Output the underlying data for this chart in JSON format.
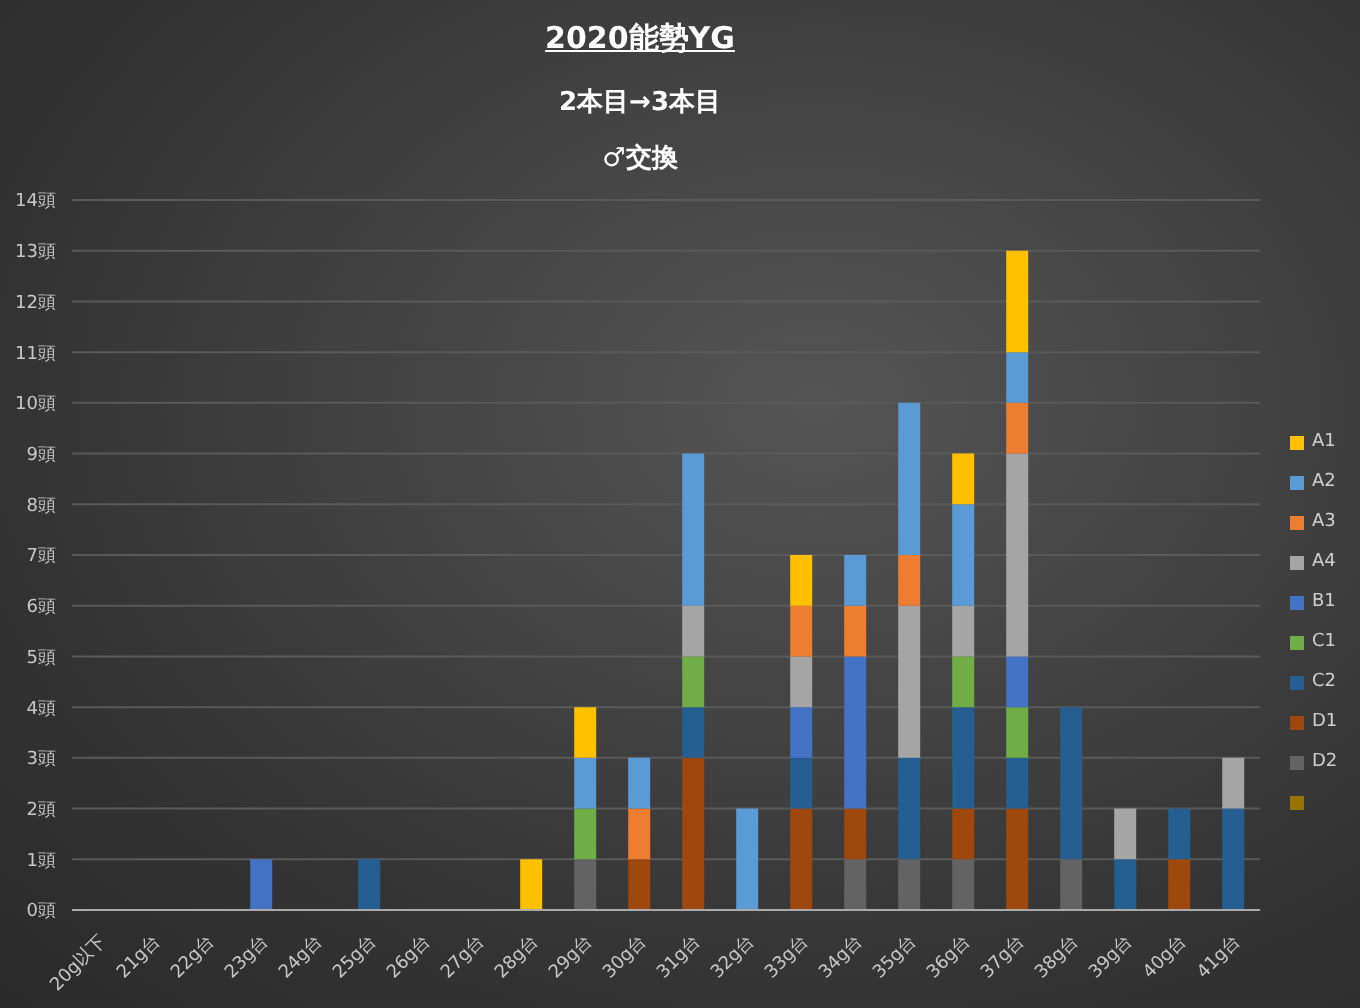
{
  "chart_data": {
    "type": "bar",
    "title": "2020能勢YG",
    "subtitle": "2本目→3本目",
    "annotations": [
      "♂交換"
    ],
    "categories": [
      "20g以下",
      "21g台",
      "22g台",
      "23g台",
      "24g台",
      "25g台",
      "26g台",
      "27g台",
      "28g台",
      "29g台",
      "30g台",
      "31g台",
      "32g台",
      "33g台",
      "34g台",
      "35g台",
      "36g台",
      "37g台",
      "38g台",
      "39g台",
      "40g台",
      "41g台"
    ],
    "stacked": true,
    "grid": "y",
    "legend": "right",
    "ylim": [
      0,
      14
    ],
    "yticks": [
      {
        "value": 0,
        "label": "0頭"
      },
      {
        "value": 1,
        "label": "1頭"
      },
      {
        "value": 2,
        "label": "2頭"
      },
      {
        "value": 3,
        "label": "3頭"
      },
      {
        "value": 4,
        "label": "4頭"
      },
      {
        "value": 5,
        "label": "5頭"
      },
      {
        "value": 6,
        "label": "6頭"
      },
      {
        "value": 7,
        "label": "7頭"
      },
      {
        "value": 8,
        "label": "8頭"
      },
      {
        "value": 9,
        "label": "9頭"
      },
      {
        "value": 10,
        "label": "10頭"
      },
      {
        "value": 11,
        "label": "11頭"
      },
      {
        "value": 12,
        "label": "12頭"
      },
      {
        "value": 13,
        "label": "13頭"
      },
      {
        "value": 14,
        "label": "14頭"
      }
    ],
    "series": [
      {
        "color": "#997300",
        "values": [
          0,
          0,
          0,
          0,
          0,
          0,
          0,
          0,
          0,
          0,
          0,
          0,
          0,
          0,
          0,
          0,
          0,
          0,
          0,
          0,
          0,
          0
        ]
      },
      {
        "name": "D2",
        "color": "#636363",
        "values": [
          0,
          0,
          0,
          0,
          0,
          0,
          0,
          0,
          0,
          1,
          0,
          0,
          0,
          0,
          1,
          1,
          1,
          0,
          1,
          0,
          0,
          0
        ]
      },
      {
        "name": "D1",
        "color": "#9e480e",
        "values": [
          0,
          0,
          0,
          0,
          0,
          0,
          0,
          0,
          0,
          0,
          1,
          3,
          0,
          2,
          1,
          0,
          1,
          2,
          0,
          0,
          1,
          0
        ]
      },
      {
        "name": "C2",
        "color": "#255e91",
        "values": [
          0,
          0,
          0,
          0,
          0,
          1,
          0,
          0,
          0,
          0,
          0,
          1,
          0,
          1,
          0,
          2,
          2,
          1,
          3,
          1,
          1,
          2
        ]
      },
      {
        "name": "C1",
        "color": "#70ad47",
        "values": [
          0,
          0,
          0,
          0,
          0,
          0,
          0,
          0,
          0,
          1,
          0,
          1,
          0,
          0,
          0,
          0,
          1,
          1,
          0,
          0,
          0,
          0
        ]
      },
      {
        "name": "B1",
        "color": "#4472c4",
        "values": [
          0,
          0,
          0,
          1,
          0,
          0,
          0,
          0,
          0,
          0,
          0,
          0,
          0,
          1,
          3,
          0,
          0,
          1,
          0,
          0,
          0,
          0
        ]
      },
      {
        "name": "A4",
        "color": "#a5a5a5",
        "values": [
          0,
          0,
          0,
          0,
          0,
          0,
          0,
          0,
          0,
          0,
          0,
          1,
          0,
          1,
          0,
          3,
          1,
          4,
          0,
          1,
          0,
          1
        ]
      },
      {
        "name": "A3",
        "color": "#ed7d31",
        "values": [
          0,
          0,
          0,
          0,
          0,
          0,
          0,
          0,
          0,
          0,
          1,
          0,
          0,
          1,
          1,
          1,
          0,
          1,
          0,
          0,
          0,
          0
        ]
      },
      {
        "name": "A2",
        "color": "#5b9bd5",
        "values": [
          0,
          0,
          0,
          0,
          0,
          0,
          0,
          0,
          0,
          1,
          1,
          3,
          2,
          0,
          1,
          3,
          2,
          1,
          0,
          0,
          0,
          0
        ]
      },
      {
        "name": "A1",
        "color": "#ffc000",
        "values": [
          0,
          0,
          0,
          0,
          0,
          0,
          0,
          0,
          1,
          1,
          0,
          0,
          0,
          1,
          0,
          0,
          1,
          2,
          0,
          0,
          0,
          0
        ]
      }
    ]
  }
}
